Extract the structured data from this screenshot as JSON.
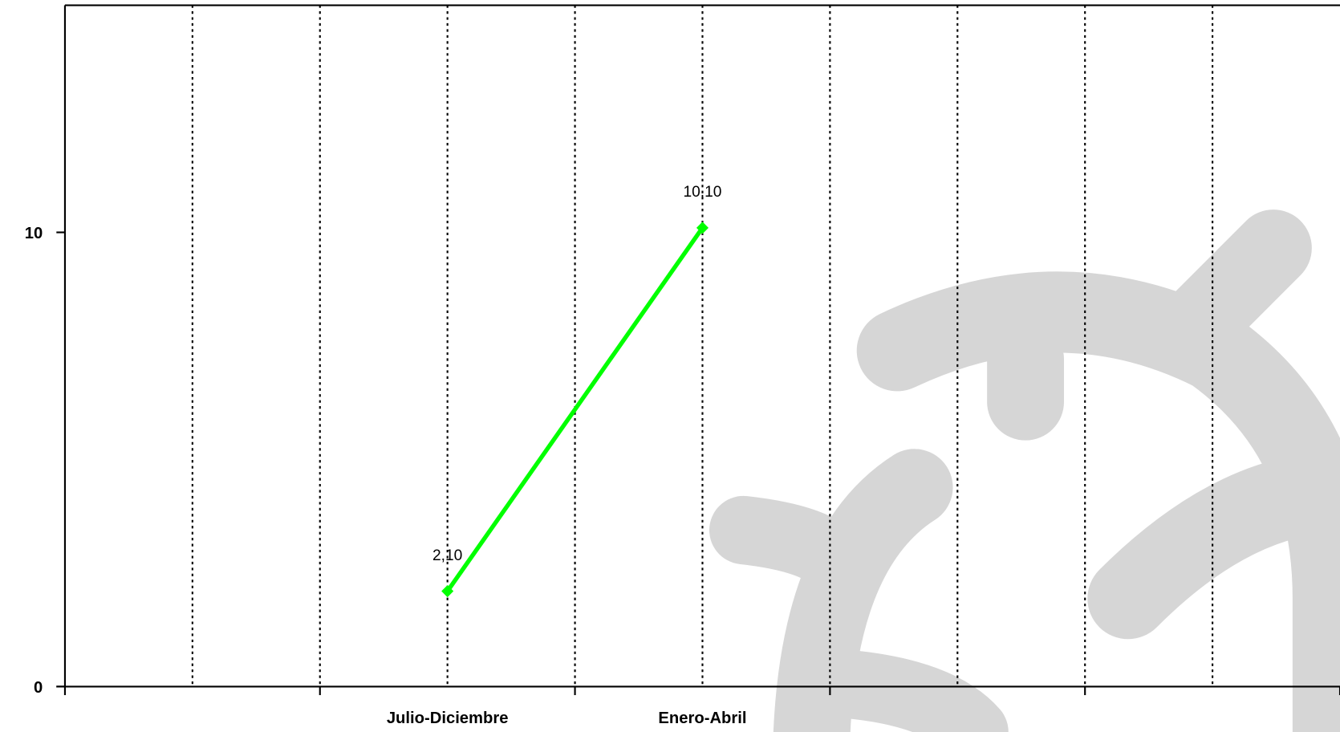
{
  "chart_data": {
    "type": "line",
    "categories": [
      null,
      "Julio-Diciembre",
      "Enero-Abril",
      null,
      null
    ],
    "series": [
      {
        "color": "#00ff00",
        "values": [
          null,
          2.1,
          10.1,
          null,
          null
        ],
        "value_labels": [
          null,
          "2,10",
          "10,10",
          null,
          null
        ]
      }
    ],
    "ylim": [
      0,
      15
    ],
    "yticks": [
      0,
      10
    ],
    "grid": true
  }
}
